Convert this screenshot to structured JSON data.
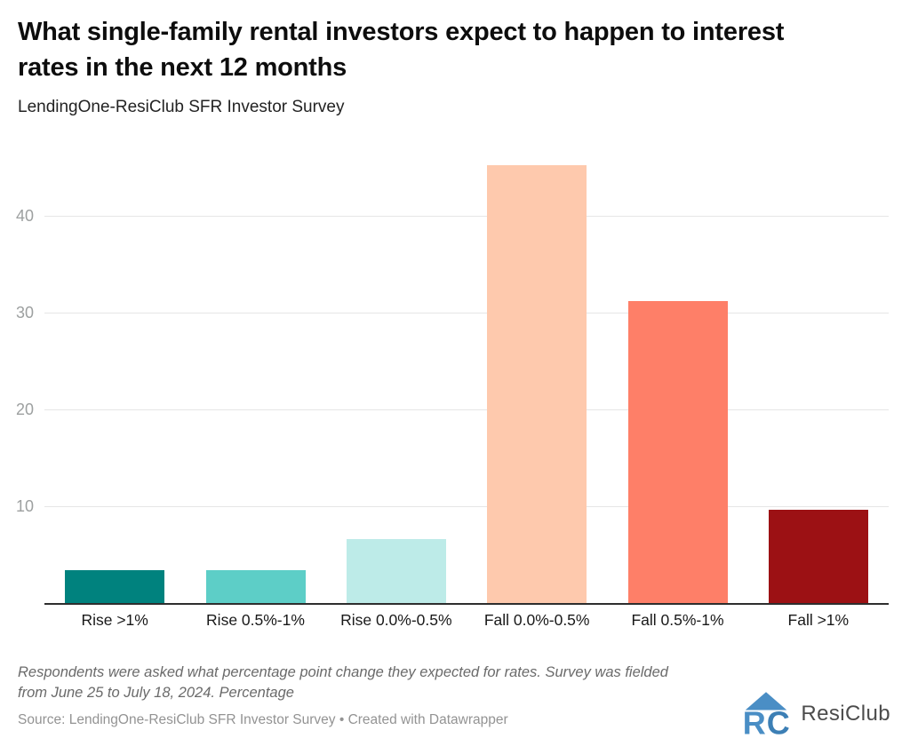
{
  "header": {
    "title": "What single-family rental investors expect to happen to interest rates in the next 12 months",
    "subtitle": "LendingOne-ResiClub SFR Investor Survey"
  },
  "chart_data": {
    "type": "bar",
    "title": "What single-family rental investors expect to happen to interest rates in the next 12 months",
    "subtitle": "LendingOne-ResiClub SFR Investor Survey",
    "categories": [
      "Rise >1%",
      "Rise 0.5%-1%",
      "Rise 0.0%-0.5%",
      "Fall 0.0%-0.5%",
      "Fall 0.5%-1%",
      "Fall >1%"
    ],
    "values": [
      3.5,
      3.5,
      6.7,
      45.3,
      31.3,
      9.7
    ],
    "bar_colors": [
      "#00827e",
      "#5dcec7",
      "#bdebe8",
      "#fec9ad",
      "#fe7f68",
      "#9c1114"
    ],
    "xlabel": "",
    "ylabel": "",
    "unit": "Percentage",
    "yticks": [
      10,
      20,
      30,
      40
    ],
    "ylim": [
      0,
      47.3
    ],
    "grid": true,
    "legend": false
  },
  "footer": {
    "note": "Respondents were asked what percentage point change they expected for rates. Survey was fielded from June 25 to July 18, 2024. Percentage",
    "source": "Source: LendingOne-ResiClub SFR Investor Survey • Created with Datawrapper",
    "logo_text": "ResiClub"
  },
  "colors": {
    "grid": "#e6e6e6",
    "axis": "#2e2e2e",
    "tick_label": "#9da0a0",
    "logo_blue": "#4a8ec5"
  }
}
